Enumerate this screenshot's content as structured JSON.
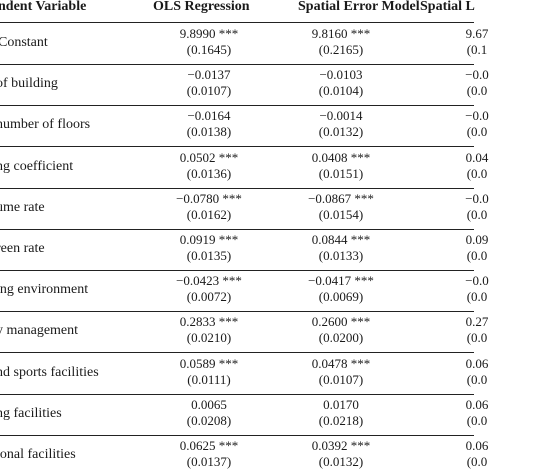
{
  "header": {
    "col0": "ndent Variable",
    "col1": "OLS Regression",
    "col2": "Spatial Error Model",
    "col3": "Spatial L"
  },
  "rows": [
    {
      "label": "Constant",
      "c1": [
        "9.8990 ***",
        "(0.1645)"
      ],
      "c2": [
        "9.8160 ***",
        "(0.2165)"
      ],
      "c3": [
        "9.67",
        "(0.1"
      ]
    },
    {
      "label": "of building",
      "c1": [
        "−0.0137",
        "(0.0107)"
      ],
      "c2": [
        "−0.0103",
        "(0.0104)"
      ],
      "c3": [
        "−0.0",
        "(0.0"
      ]
    },
    {
      "label": "number of floors",
      "c1": [
        "−0.0164",
        "(0.0138)"
      ],
      "c2": [
        "−0.0014",
        "(0.0132)"
      ],
      "c3": [
        "−0.0",
        "(0.0"
      ]
    },
    {
      "label": "ng coefficient",
      "c1": [
        "0.0502 ***",
        "(0.0136)"
      ],
      "c2": [
        "0.0408 ***",
        "(0.0151)"
      ],
      "c3": [
        "0.04",
        "(0.0"
      ]
    },
    {
      "label": "ume rate",
      "c1": [
        "−0.0780 ***",
        "(0.0162)"
      ],
      "c2": [
        "−0.0867 ***",
        "(0.0154)"
      ],
      "c3": [
        "−0.0",
        "(0.0"
      ]
    },
    {
      "label": "reen rate",
      "c1": [
        "0.0919 ***",
        "(0.0135)"
      ],
      "c2": [
        "0.0844 ***",
        "(0.0133)"
      ],
      "c3": [
        "0.09",
        "(0.0"
      ]
    },
    {
      "label": "ing environment",
      "c1": [
        "−0.0423 ***",
        "(0.0072)"
      ],
      "c2": [
        "−0.0417 ***",
        "(0.0069)"
      ],
      "c3": [
        "−0.0",
        "(0.0"
      ]
    },
    {
      "label": "y management",
      "c1": [
        "0.2833 ***",
        "(0.0210)"
      ],
      "c2": [
        "0.2600 ***",
        "(0.0200)"
      ],
      "c3": [
        "0.27",
        "(0.0"
      ]
    },
    {
      "label": "nd sports facilities",
      "c1": [
        "0.0589 ***",
        "(0.0111)"
      ],
      "c2": [
        "0.0478 ***",
        "(0.0107)"
      ],
      "c3": [
        "0.06",
        "(0.0"
      ]
    },
    {
      "label": "ng facilities",
      "c1": [
        "0.0065",
        "(0.0208)"
      ],
      "c2": [
        "0.0170",
        "(0.0218)"
      ],
      "c3": [
        "0.06",
        "(0.0"
      ]
    },
    {
      "label": "ional facilities",
      "c1": [
        "0.0625 ***",
        "(0.0137)"
      ],
      "c2": [
        "0.0392 ***",
        "(0.0132)"
      ],
      "c3": [
        "0.06",
        "(0.0"
      ]
    }
  ]
}
